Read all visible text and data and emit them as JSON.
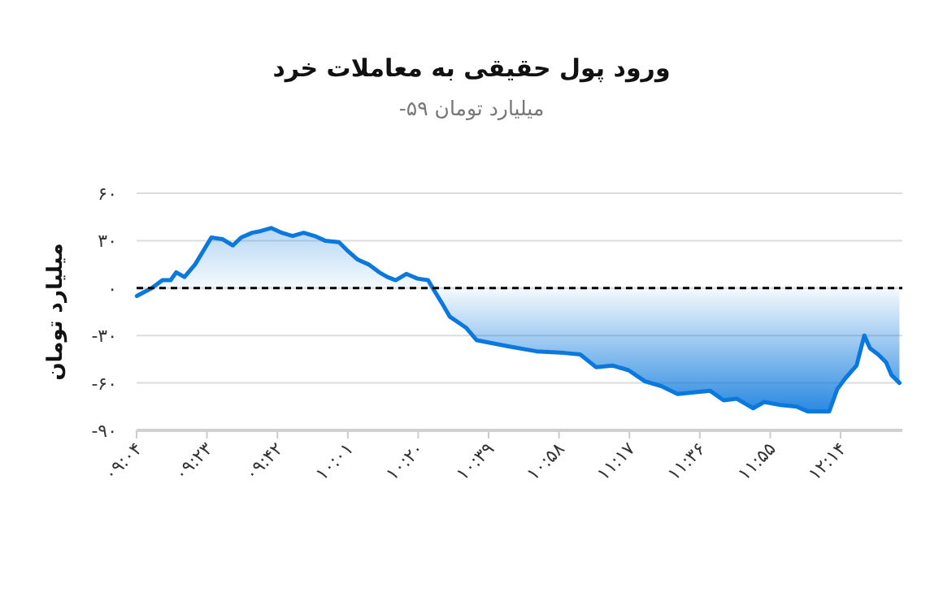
{
  "chart_data": {
    "type": "area",
    "title": "ورود پول حقیقی به معاملات خرد",
    "subtitle": "میلیارد تومان ۵۹-",
    "ylabel": "میلیارد تومان",
    "x": [
      9.068,
      9.135,
      9.183,
      9.22,
      9.245,
      9.282,
      9.33,
      9.403,
      9.452,
      9.5,
      9.537,
      9.587,
      9.623,
      9.672,
      9.72,
      9.768,
      9.818,
      9.867,
      9.915,
      9.977,
      10.013,
      10.062,
      10.11,
      10.158,
      10.195,
      10.232,
      10.28,
      10.33,
      10.378,
      10.403,
      10.438,
      10.475,
      10.548,
      10.597,
      10.743,
      10.865,
      10.988,
      11.062,
      11.133,
      11.207,
      11.28,
      11.353,
      11.427,
      11.5,
      11.573,
      11.647,
      11.707,
      11.767,
      11.84,
      11.89,
      11.963,
      12.035,
      12.085,
      12.182,
      12.218,
      12.255,
      12.305,
      12.34,
      12.365,
      12.402,
      12.438,
      12.462,
      12.498
    ],
    "series": [
      {
        "color": "#0a78dc",
        "values": [
          -5,
          0,
          5,
          5,
          10,
          7,
          15,
          32,
          31,
          27,
          32,
          35,
          36,
          38,
          35,
          33,
          35,
          33,
          30,
          29,
          24,
          18,
          15,
          10,
          7,
          5,
          9,
          6,
          5,
          -1,
          -9,
          -18,
          -25,
          -33,
          -37,
          -40,
          -41,
          -42,
          -50,
          -49,
          -52,
          -59,
          -62,
          -67,
          -66,
          -65,
          -71,
          -70,
          -76,
          -72,
          -74,
          -75,
          -78,
          -78,
          -64,
          -57,
          -49,
          -30,
          -38,
          -42,
          -47,
          -55,
          -60
        ]
      }
    ],
    "xlim": [
      9.0667,
      12.511
    ],
    "xticks": [
      {
        "value": 9.0667,
        "label": "۰۹:۰۴"
      },
      {
        "value": 9.3833,
        "label": "۰۹:۲۳"
      },
      {
        "value": 9.7,
        "label": "۰۹:۴۲"
      },
      {
        "value": 10.0167,
        "label": "۱۰:۰۱"
      },
      {
        "value": 10.3333,
        "label": "۱۰:۲۰"
      },
      {
        "value": 10.65,
        "label": "۱۰:۳۹"
      },
      {
        "value": 10.9667,
        "label": "۱۰:۵۸"
      },
      {
        "value": 11.2833,
        "label": "۱۱:۱۷"
      },
      {
        "value": 11.6,
        "label": "۱۱:۳۶"
      },
      {
        "value": 11.9167,
        "label": "۱۱:۵۵"
      },
      {
        "value": 12.2333,
        "label": "۱۲:۱۴"
      }
    ],
    "ylim": [
      -90,
      60
    ],
    "yticks": [
      {
        "value": 60,
        "label": "۶۰"
      },
      {
        "value": 30,
        "label": "۳۰"
      },
      {
        "value": 0,
        "label": "۰"
      },
      {
        "value": -30,
        "label": "-۳۰"
      },
      {
        "value": -60,
        "label": "-۶۰"
      },
      {
        "value": -90,
        "label": "-۹۰"
      }
    ],
    "ref_lines": [
      {
        "axis": "y",
        "value": 0,
        "color": "#000000",
        "line_style": "dashed"
      }
    ],
    "grid": "y",
    "marker": "none",
    "line_style": "solid"
  }
}
